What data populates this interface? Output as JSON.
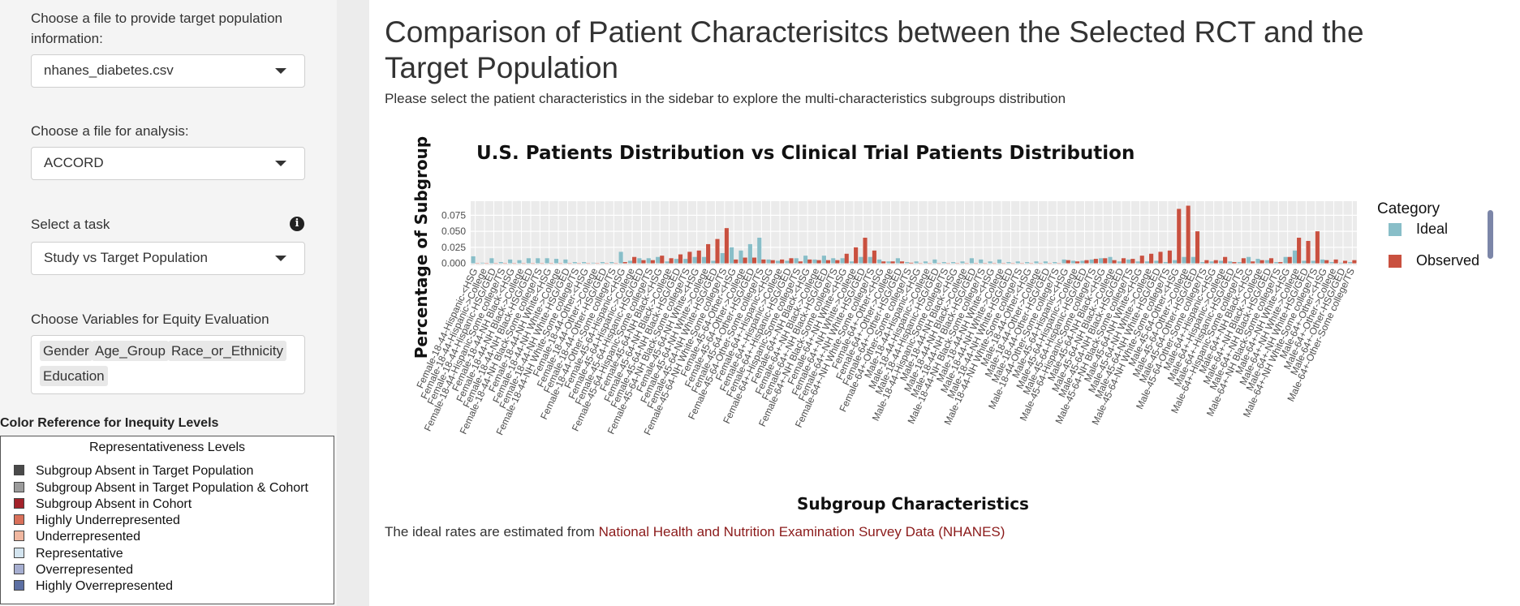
{
  "sidebar": {
    "target_file_label": "Choose a file to provide target population information:",
    "target_file_value": "nhanes_diabetes.csv",
    "analysis_file_label": "Choose a file for analysis:",
    "analysis_file_value": "ACCORD",
    "task_label": "Select a task",
    "task_value": "Study vs Target Population",
    "variables_label": "Choose Variables for Equity Evaluation",
    "variables": [
      "Gender",
      "Age_Group",
      "Race_or_Ethnicity",
      "Education"
    ],
    "legend_title": "Color Reference for Inequity Levels",
    "legend_heading": "Representativeness Levels",
    "legend_items": [
      {
        "label": "Subgroup Absent in Target Population",
        "color": "#4a4a4a"
      },
      {
        "label": "Subgroup Absent in Target Population & Cohort",
        "color": "#9b9b9b"
      },
      {
        "label": "Subgroup Absent in Cohort",
        "color": "#a3222a"
      },
      {
        "label": "Highly Underrepresented",
        "color": "#d9705a"
      },
      {
        "label": "Underrepresented",
        "color": "#f0b7a0"
      },
      {
        "label": "Representative",
        "color": "#d3e4ef"
      },
      {
        "label": "Overrepresented",
        "color": "#a6aed0"
      },
      {
        "label": "Highly Overrepresented",
        "color": "#5c6fa3"
      }
    ]
  },
  "main": {
    "title": "Comparison of Patient Characterisitcs between the Selected RCT and the Target Population",
    "subtitle": "Please select the patient characteristics in the sidebar to explore the multi-characteristics subgroups distribution",
    "footnote_prefix": "The ideal rates are estimated from ",
    "footnote_link": "National Health and Nutrition Examination Survey Data (NHANES)"
  },
  "chart_data": {
    "type": "bar",
    "title": "U.S. Patients Distribution vs Clinical Trial Patients Distribution",
    "xlabel": "Subgroup Characteristics",
    "ylabel": "Percentage of Subgroup",
    "ylim": [
      -0.003,
      0.097
    ],
    "yticks": [
      0.0,
      0.025,
      0.05,
      0.075
    ],
    "ytick_labels": [
      "0.000",
      "0.025",
      "0.050",
      "0.075"
    ],
    "legend_title": "Category",
    "legend_position": "right",
    "series_colors": [
      "#88bec8",
      "#c9503f"
    ],
    "categories": [
      "Female-18-44-Hispanic-<HSG",
      "Female-18-44-Hispanic->College",
      "Female-18-44-Hispanic-HSG/GED",
      "Female-18-44-Hispanic-Some college/TS",
      "Female-18-44-NH Black-<HSG",
      "Female-18-44-NH Black->College",
      "Female-18-44-NH Black-HSG/GED",
      "Female-18-44-NH Black-Some college/TS",
      "Female-18-44-NH White-<HSG",
      "Female-18-44-NH White->College",
      "Female-18-44-NH White-HSG/GED",
      "Female-18-44-NH White-Some college/TS",
      "Female-18-44-Other-<HSG",
      "Female-18-44-Other->College",
      "Female-18-44-Other-HSG/GED",
      "Female-18-44-Other-Some college/TS",
      "Female-45-64-Hispanic-<HSG",
      "Female-45-64-Hispanic->College",
      "Female-45-64-Hispanic-HSG/GED",
      "Female-45-64-Hispanic-Some college/TS",
      "Female-45-64-NH Black-<HSG",
      "Female-45-64-NH Black->College",
      "Female-45-64-NH Black-HSG/GED",
      "Female-45-64-NH Black-Some college/TS",
      "Female-45-64-NH White-<HSG",
      "Female-45-64-NH White->College",
      "Female-45-64-NH White-HSG/GED",
      "Female-45-64-NH White-Some college/TS",
      "Female-45-64-Other-<HSG",
      "Female-45-64-Other->College",
      "Female-45-64-Other-HSG/GED",
      "Female-45-64-Other-Some college/TS",
      "Female-64+-Hispanic-<HSG",
      "Female-64+-Hispanic->College",
      "Female-64+-Hispanic-HSG/GED",
      "Female-64+-Hispanic-Some college/TS",
      "Female-64+-NH Black-<HSG",
      "Female-64+-NH Black->College",
      "Female-64+-NH Black-HSG/GED",
      "Female-64+-NH Black-Some college/TS",
      "Female-64+-NH White-<HSG",
      "Female-64+-NH White->College",
      "Female-64+-NH White-HSG/GED",
      "Female-64+-NH White-Some college/TS",
      "Female-64+-Other-<HSG",
      "Female-64+-Other->College",
      "Female-64+-Other-HSG/GED",
      "Female-64+-Other-Some college/TS",
      "Male-18-44-Hispanic-<HSG",
      "Male-18-44-Hispanic->College",
      "Male-18-44-Hispanic-HSG/GED",
      "Male-18-44-Hispanic-Some college/TS",
      "Male-18-44-NH Black-<HSG",
      "Male-18-44-NH Black->College",
      "Male-18-44-NH Black-HSG/GED",
      "Male-18-44-NH Black-Some college/TS",
      "Male-18-44-NH White-<HSG",
      "Male-18-44-NH White->College",
      "Male-18-44-NH White-HSG/GED",
      "Male-18-44-NH White-Some college/TS",
      "Male-18-44-Other-<HSG",
      "Male-18-44-Other->College",
      "Male-18-44-Other-HSG/GED",
      "Male-18-44-Other-Some college/TS",
      "Male-45-64-Hispanic-<HSG",
      "Male-45-64-Hispanic->College",
      "Male-45-64-Hispanic-HSG/GED",
      "Male-45-64-Hispanic-Some college/TS",
      "Male-45-64-NH Black-<HSG",
      "Male-45-64-NH Black->College",
      "Male-45-64-NH Black-HSG/GED",
      "Male-45-64-NH Black-Some college/TS",
      "Male-45-64-NH White-<HSG",
      "Male-45-64-NH White->College",
      "Male-45-64-NH White-HSG/GED",
      "Male-45-64-NH White-Some college/TS",
      "Male-45-64-Other-<HSG",
      "Male-45-64-Other->College",
      "Male-45-64-Other-HSG/GED",
      "Male-45-64-Other-Some college/TS",
      "Male-64+-Hispanic-<HSG",
      "Male-64+-Hispanic->College",
      "Male-64+-Hispanic-HSG/GED",
      "Male-64+-Hispanic-Some college/TS",
      "Male-64+-NH Black-<HSG",
      "Male-64+-NH Black->College",
      "Male-64+-NH Black-HSG/GED",
      "Male-64+-NH Black-Some college/TS",
      "Male-64+-NH White-<HSG",
      "Male-64+-NH White->College",
      "Male-64+-NH White-HSG/GED",
      "Male-64+-NH White-Some college/TS",
      "Male-64+-Other-<HSG",
      "Male-64+-Other->College",
      "Male-64+-Other-HSG/GED",
      "Male-64+-Other-Some college/TS"
    ],
    "series": [
      {
        "name": "Ideal",
        "values": [
          0.011,
          0.001,
          0.008,
          0.002,
          0.006,
          0.005,
          0.008,
          0.008,
          0.008,
          0.007,
          0.006,
          0.002,
          0.002,
          0.001,
          0.002,
          0.002,
          0.018,
          0.004,
          0.008,
          0.008,
          0.01,
          0.003,
          0.007,
          0.007,
          0.01,
          0.01,
          0.004,
          0.016,
          0.025,
          0.02,
          0.03,
          0.04,
          0.006,
          0.004,
          0.004,
          0.008,
          0.012,
          0.006,
          0.012,
          0.008,
          0.008,
          0.003,
          0.01,
          0.01,
          0.006,
          0.003,
          0.008,
          0.002,
          0.003,
          0.003,
          0.006,
          0.002,
          0.002,
          0.003,
          0.008,
          0.006,
          0.003,
          0.006,
          0.002,
          0.003,
          0.002,
          0.003,
          0.003,
          0.002,
          0.006,
          0.004,
          0.004,
          0.006,
          0.008,
          0.01,
          0.003,
          0.006,
          0.003,
          0.003,
          0.004,
          0.002,
          0.005,
          0.01,
          0.01,
          0.002,
          0.003,
          0.004,
          0.003,
          0.002,
          0.01,
          0.007,
          0.005,
          0.002,
          0.01,
          0.02,
          0.004,
          0.004,
          0.006,
          0.002,
          0.001,
          0.002
        ]
      },
      {
        "name": "Observed",
        "values": [
          0.0,
          0.0,
          0.0,
          0.0,
          0.0,
          0.0,
          0.0,
          0.0,
          0.0,
          0.0,
          0.0,
          0.0,
          0.0,
          0.0,
          0.0,
          0.0,
          0.002,
          0.01,
          0.005,
          0.005,
          0.012,
          0.008,
          0.014,
          0.018,
          0.02,
          0.03,
          0.038,
          0.055,
          0.006,
          0.009,
          0.009,
          0.006,
          0.005,
          0.006,
          0.008,
          0.003,
          0.006,
          0.005,
          0.005,
          0.005,
          0.015,
          0.025,
          0.04,
          0.02,
          0.003,
          0.003,
          0.003,
          0.001,
          0.0,
          0.0,
          0.0,
          0.0,
          0.0,
          0.0,
          0.0,
          0.0,
          0.0,
          0.0,
          0.0,
          0.0,
          0.0,
          0.0,
          0.0,
          0.0,
          0.005,
          0.003,
          0.005,
          0.007,
          0.008,
          0.005,
          0.008,
          0.007,
          0.012,
          0.015,
          0.018,
          0.02,
          0.085,
          0.09,
          0.05,
          0.005,
          0.005,
          0.01,
          0.002,
          0.008,
          0.003,
          0.005,
          0.008,
          0.002,
          0.01,
          0.04,
          0.035,
          0.05,
          0.005,
          0.006,
          0.004,
          0.005
        ]
      }
    ]
  }
}
